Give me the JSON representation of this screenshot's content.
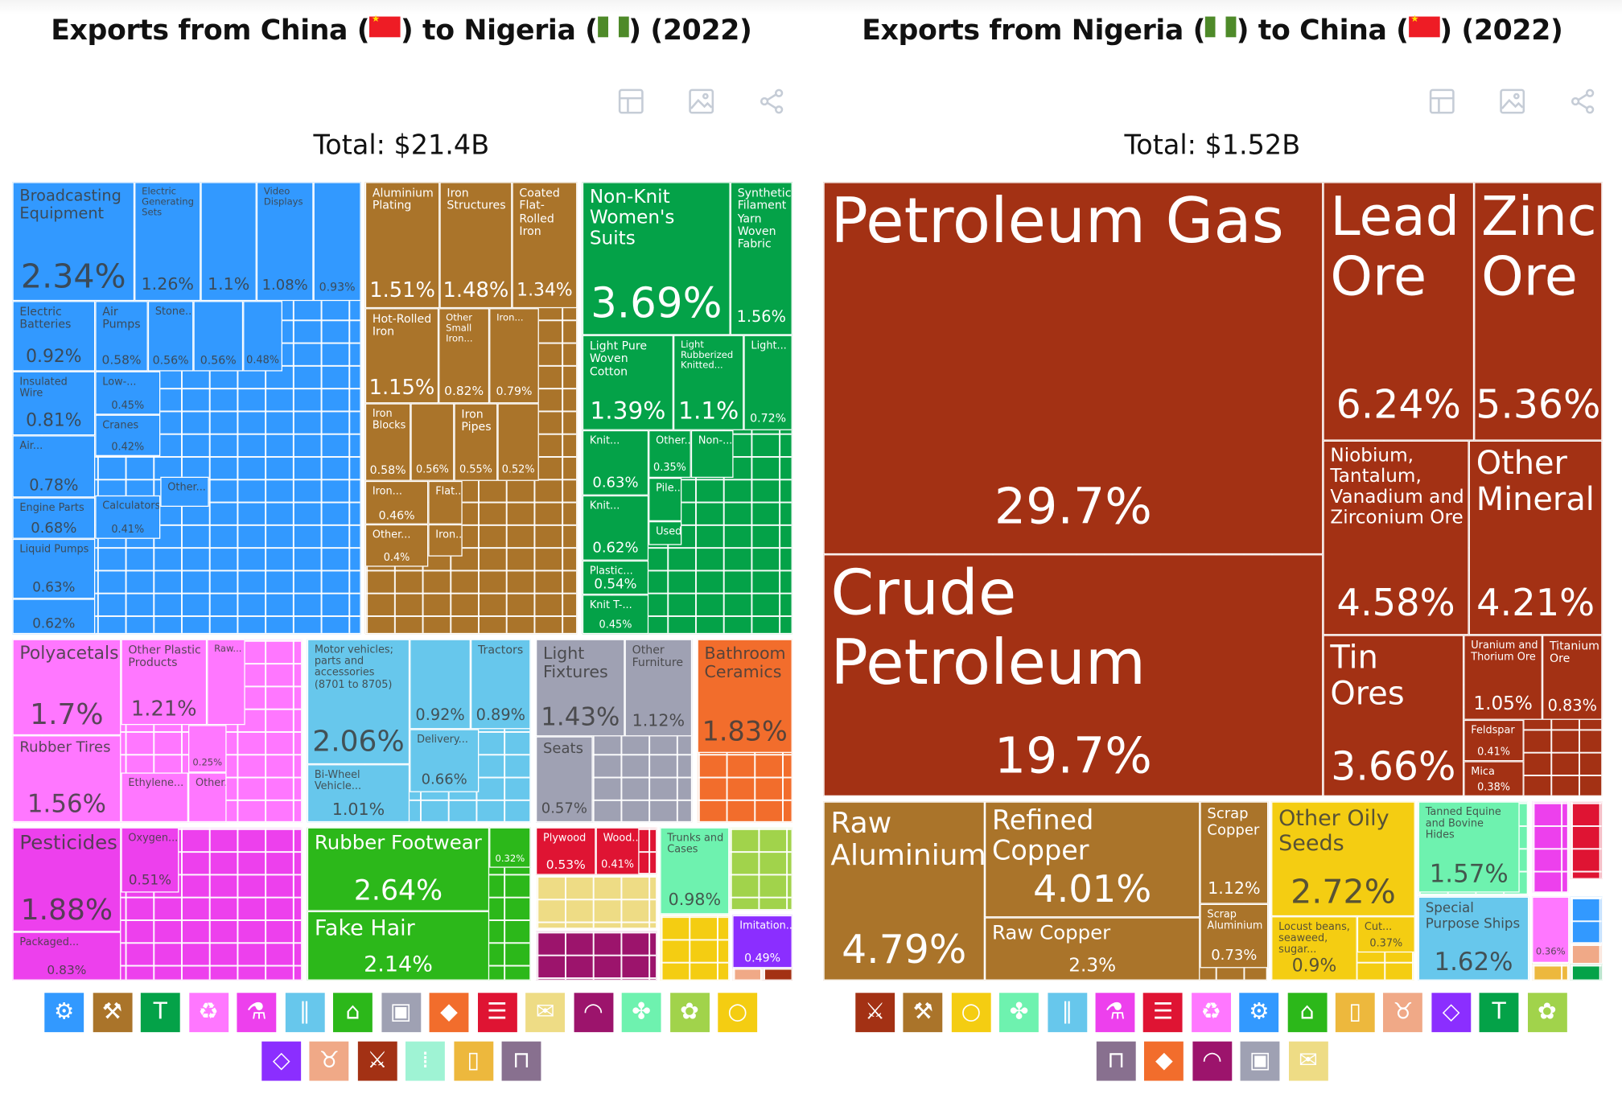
{
  "colors": {
    "blue": "#3299FF",
    "brown": "#AA742A",
    "green": "#04A248",
    "pink": "#FF77FF",
    "magenta": "#ED40ED",
    "lightblue": "#67C7EC",
    "green2": "#2CB81A",
    "gray": "#9FA1B3",
    "orange": "#F26D2C",
    "red": "#DF1433",
    "beige": "#EEDC85",
    "maroon": "#9C146C",
    "mint": "#6EF2AF",
    "lime": "#A1D34B",
    "yellow": "#F4CD12",
    "purple": "#8B2EFF",
    "darkred": "#A33114",
    "gold": "#EDB83D",
    "salmon": "#F0A987",
    "mauve": "#88708F",
    "aqua": "#9FF3D4"
  },
  "left": {
    "title": {
      "prefix": "Exports from China (",
      "middle": ") to Nigeria (",
      "suffix": ") (2022)"
    },
    "total": "Total: $21.4B",
    "tiles": [
      {
        "label": "Broadcasting Equipment",
        "pct": "2.34%"
      },
      {
        "label": "Electric Generating Sets",
        "pct": "1.26%"
      },
      {
        "label": "",
        "pct": "1.1%"
      },
      {
        "label": "Video Displays",
        "pct": "1.08%"
      },
      {
        "label": "",
        "pct": "0.93%"
      },
      {
        "label": "Electric Batteries",
        "pct": "0.92%"
      },
      {
        "label": "Air Pumps",
        "pct": "0.58%"
      },
      {
        "label": "Stone...",
        "pct": "0.56%"
      },
      {
        "label": "",
        "pct": "0.56%"
      },
      {
        "label": "",
        "pct": "0.48%"
      },
      {
        "label": "Insulated Wire",
        "pct": "0.81%"
      },
      {
        "label": "Air...",
        "pct": "0.78%"
      },
      {
        "label": "Engine Parts",
        "pct": "0.68%"
      },
      {
        "label": "Liquid Pumps",
        "pct": "0.63%"
      },
      {
        "label": "",
        "pct": "0.62%"
      },
      {
        "label": "Low-...",
        "pct": "0.45%"
      },
      {
        "label": "Cranes",
        "pct": "0.42%"
      },
      {
        "label": "Calculators",
        "pct": "0.41%"
      },
      {
        "label": "Other...",
        "pct": ""
      },
      {
        "label": "Aluminium Plating",
        "pct": "1.51%"
      },
      {
        "label": "Iron Structures",
        "pct": "1.48%"
      },
      {
        "label": "Coated Flat-Rolled Iron",
        "pct": "1.34%"
      },
      {
        "label": "Hot-Rolled Iron",
        "pct": "1.15%"
      },
      {
        "label": "Other Small Iron...",
        "pct": "0.82%"
      },
      {
        "label": "Iron...",
        "pct": "0.79%"
      },
      {
        "label": "Iron Blocks",
        "pct": "0.58%"
      },
      {
        "label": "",
        "pct": "0.56%"
      },
      {
        "label": "Iron Pipes",
        "pct": "0.55%"
      },
      {
        "label": "",
        "pct": "0.52%"
      },
      {
        "label": "Iron...",
        "pct": "0.46%"
      },
      {
        "label": "Flat...",
        "pct": ""
      },
      {
        "label": "Other...",
        "pct": "0.4%"
      },
      {
        "label": "Iron...",
        "pct": ""
      },
      {
        "label": "Non-Knit Women's Suits",
        "pct": "3.69%"
      },
      {
        "label": "Synthetic Filament Yarn Woven Fabric",
        "pct": "1.56%"
      },
      {
        "label": "Light Pure Woven Cotton",
        "pct": "1.39%"
      },
      {
        "label": "Light Rubberized Knitted...",
        "pct": "1.1%"
      },
      {
        "label": "Light...",
        "pct": "0.72%"
      },
      {
        "label": "Knit...",
        "pct": "0.63%"
      },
      {
        "label": "Knit...",
        "pct": "0.62%"
      },
      {
        "label": "Plastic...",
        "pct": "0.54%"
      },
      {
        "label": "Knit T-...",
        "pct": "0.45%"
      },
      {
        "label": "Other...",
        "pct": "0.35%"
      },
      {
        "label": "Non-...",
        "pct": ""
      },
      {
        "label": "Pile...",
        "pct": ""
      },
      {
        "label": "Used...",
        "pct": ""
      },
      {
        "label": "Polyacetals",
        "pct": "1.7%"
      },
      {
        "label": "Rubber Tires",
        "pct": "1.56%"
      },
      {
        "label": "Other Plastic Products",
        "pct": "1.21%"
      },
      {
        "label": "Raw...",
        "pct": ""
      },
      {
        "label": "",
        "pct": "0.25%"
      },
      {
        "label": "Ethylene...",
        "pct": ""
      },
      {
        "label": "Other...",
        "pct": ""
      },
      {
        "label": "Pesticides",
        "pct": "1.88%"
      },
      {
        "label": "Packaged...",
        "pct": "0.83%"
      },
      {
        "label": "Oxygen...",
        "pct": "0.51%"
      },
      {
        "label": "Motor vehicles; parts and accessories (8701 to 8705)",
        "pct": "2.06%"
      },
      {
        "label": "",
        "pct": "0.92%"
      },
      {
        "label": "Tractors",
        "pct": "0.89%"
      },
      {
        "label": "Bi-Wheel Vehicle...",
        "pct": "1.01%"
      },
      {
        "label": "Delivery...",
        "pct": "0.66%"
      },
      {
        "label": "Rubber Footwear",
        "pct": "2.64%"
      },
      {
        "label": "Fake Hair",
        "pct": "2.14%"
      },
      {
        "label": "",
        "pct": "0.32%"
      },
      {
        "label": "Light Fixtures",
        "pct": "1.43%"
      },
      {
        "label": "Other Furniture",
        "pct": "1.12%"
      },
      {
        "label": "Seats",
        "pct": "0.57%"
      },
      {
        "label": "Bathroom Ceramics",
        "pct": "1.83%"
      },
      {
        "label": "Plywood",
        "pct": "0.53%"
      },
      {
        "label": "Wood...",
        "pct": "0.41%"
      },
      {
        "label": "Trunks and Cases",
        "pct": "0.98%"
      },
      {
        "label": "Imitation...",
        "pct": "0.49%"
      }
    ],
    "icons": [
      {
        "name": "gear",
        "color": "blue"
      },
      {
        "name": "anvil",
        "color": "brown"
      },
      {
        "name": "shirt",
        "color": "green"
      },
      {
        "name": "recycle",
        "color": "pink"
      },
      {
        "name": "flask",
        "color": "magenta"
      },
      {
        "name": "road",
        "color": "lightblue"
      },
      {
        "name": "shoe",
        "color": "green2"
      },
      {
        "name": "box",
        "color": "gray"
      },
      {
        "name": "rock",
        "color": "orange"
      },
      {
        "name": "ticket",
        "color": "red"
      },
      {
        "name": "scroll",
        "color": "beige"
      },
      {
        "name": "gauge",
        "color": "maroon"
      },
      {
        "name": "leather",
        "color": "mint"
      },
      {
        "name": "wheat",
        "color": "lime"
      },
      {
        "name": "tomato",
        "color": "yellow"
      },
      {
        "name": "diamond",
        "color": "purple"
      },
      {
        "name": "cow",
        "color": "salmon"
      },
      {
        "name": "pickaxe",
        "color": "darkred"
      },
      {
        "name": "bullets",
        "color": "aqua"
      },
      {
        "name": "bottle",
        "color": "gold"
      },
      {
        "name": "easel",
        "color": "mauve"
      }
    ]
  },
  "right": {
    "title": {
      "prefix": "Exports from Nigeria (",
      "middle": ") to China (",
      "suffix": ") (2022)"
    },
    "total": "Total: $1.52B",
    "tiles": [
      {
        "label": "Petroleum Gas",
        "pct": "29.7%"
      },
      {
        "label": "Crude Petroleum",
        "pct": "19.7%"
      },
      {
        "label": "Lead Ore",
        "pct": "6.24%"
      },
      {
        "label": "Zinc Ore",
        "pct": "5.36%"
      },
      {
        "label": "Niobium, Tantalum, Vanadium and Zirconium Ore",
        "pct": "4.58%"
      },
      {
        "label": "Other Mineral",
        "pct": "4.21%"
      },
      {
        "label": "Tin Ores",
        "pct": "3.66%"
      },
      {
        "label": "Uranium and Thorium Ore",
        "pct": "1.05%"
      },
      {
        "label": "Titanium Ore",
        "pct": "0.83%"
      },
      {
        "label": "Feldspar",
        "pct": "0.41%"
      },
      {
        "label": "Mica",
        "pct": "0.38%"
      },
      {
        "label": "Raw Aluminium",
        "pct": "4.79%"
      },
      {
        "label": "Refined Copper",
        "pct": "4.01%"
      },
      {
        "label": "Raw Copper",
        "pct": "2.3%"
      },
      {
        "label": "Scrap Copper",
        "pct": "1.12%"
      },
      {
        "label": "Scrap Aluminium",
        "pct": "0.73%"
      },
      {
        "label": "Other Oily Seeds",
        "pct": "2.72%"
      },
      {
        "label": "Locust beans, seaweed, sugar...",
        "pct": "0.9%"
      },
      {
        "label": "Cut...",
        "pct": "0.37%"
      },
      {
        "label": "Tanned Equine and Bovine Hides",
        "pct": "1.57%"
      },
      {
        "label": "Special Purpose Ships",
        "pct": "1.62%"
      },
      {
        "label": "",
        "pct": "0.36%"
      }
    ],
    "icons": [
      {
        "name": "pickaxe",
        "color": "darkred"
      },
      {
        "name": "anvil",
        "color": "brown"
      },
      {
        "name": "tomato",
        "color": "yellow"
      },
      {
        "name": "leather",
        "color": "mint"
      },
      {
        "name": "road",
        "color": "lightblue"
      },
      {
        "name": "flask",
        "color": "magenta"
      },
      {
        "name": "ticket",
        "color": "red"
      },
      {
        "name": "recycle",
        "color": "pink"
      },
      {
        "name": "gear",
        "color": "blue"
      },
      {
        "name": "shoe",
        "color": "green2"
      },
      {
        "name": "bottle",
        "color": "gold"
      },
      {
        "name": "cow",
        "color": "salmon"
      },
      {
        "name": "diamond",
        "color": "purple"
      },
      {
        "name": "shirt",
        "color": "green"
      },
      {
        "name": "wheat",
        "color": "lime"
      },
      {
        "name": "easel",
        "color": "mauve"
      },
      {
        "name": "rock",
        "color": "orange"
      },
      {
        "name": "gauge",
        "color": "maroon"
      },
      {
        "name": "box",
        "color": "gray"
      },
      {
        "name": "scroll",
        "color": "beige"
      }
    ]
  }
}
